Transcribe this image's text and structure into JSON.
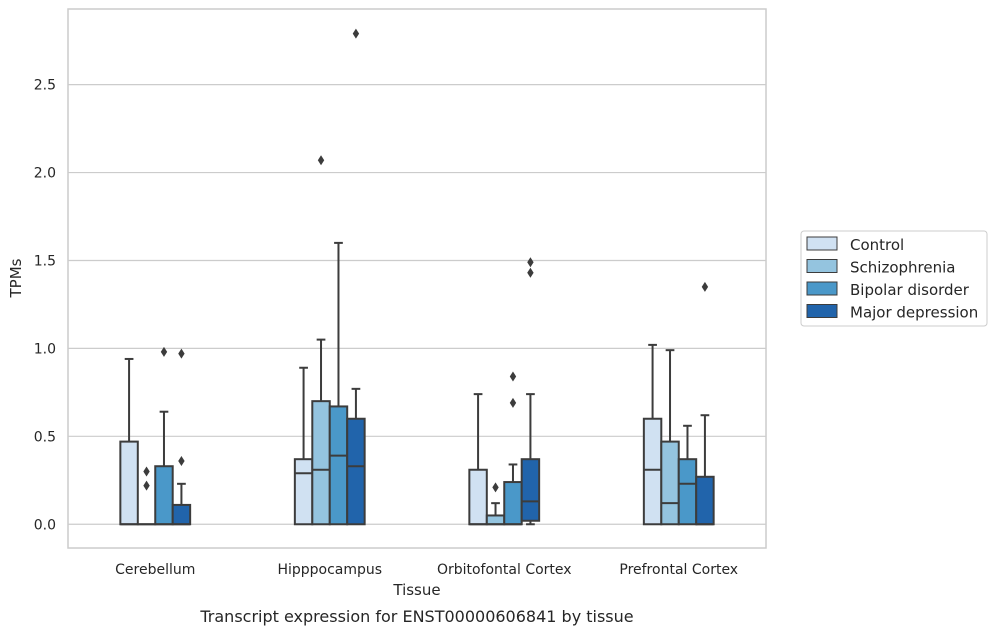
{
  "chart_data": {
    "type": "box",
    "title": "",
    "xlabel": "Tissue",
    "ylabel": "TPMs",
    "caption": "Transcript expression for ENST00000606841 by tissue",
    "ylim": [
      -0.135,
      2.93
    ],
    "yticks": [
      0.0,
      0.5,
      1.0,
      1.5,
      2.0,
      2.5
    ],
    "ytick_labels": [
      "0.0",
      "0.5",
      "1.0",
      "1.5",
      "2.0",
      "2.5"
    ],
    "grid": "horizontal",
    "legend_position": "right",
    "categories": [
      "Cerebellum",
      "Hipppocampus",
      "Orbitofontal Cortex",
      "Prefrontal Cortex"
    ],
    "series": [
      {
        "name": "Control",
        "color": "#d0e1f2",
        "boxes": [
          {
            "q1": 0.0,
            "median": 0.0,
            "q3": 0.47,
            "whislo": 0.0,
            "whishi": 0.94,
            "fliers": []
          },
          {
            "q1": 0.0,
            "median": 0.29,
            "q3": 0.37,
            "whislo": 0.0,
            "whishi": 0.89,
            "fliers": []
          },
          {
            "q1": 0.0,
            "median": 0.0,
            "q3": 0.31,
            "whislo": 0.0,
            "whishi": 0.74,
            "fliers": []
          },
          {
            "q1": 0.0,
            "median": 0.31,
            "q3": 0.6,
            "whislo": 0.0,
            "whishi": 1.02,
            "fliers": []
          }
        ]
      },
      {
        "name": "Schizophrenia",
        "color": "#94c4df",
        "boxes": [
          {
            "q1": 0.0,
            "median": 0.0,
            "q3": 0.0,
            "whislo": 0.0,
            "whishi": 0.0,
            "fliers": [
              0.22,
              0.3
            ]
          },
          {
            "q1": 0.0,
            "median": 0.31,
            "q3": 0.7,
            "whislo": 0.0,
            "whishi": 1.05,
            "fliers": [
              2.07
            ]
          },
          {
            "q1": 0.0,
            "median": 0.0,
            "q3": 0.05,
            "whislo": 0.0,
            "whishi": 0.12,
            "fliers": [
              0.21
            ]
          },
          {
            "q1": 0.0,
            "median": 0.12,
            "q3": 0.47,
            "whislo": 0.0,
            "whishi": 0.99,
            "fliers": []
          }
        ]
      },
      {
        "name": "Bipolar disorder",
        "color": "#4a98c9",
        "boxes": [
          {
            "q1": 0.0,
            "median": 0.0,
            "q3": 0.33,
            "whislo": 0.0,
            "whishi": 0.64,
            "fliers": [
              0.98
            ]
          },
          {
            "q1": 0.0,
            "median": 0.39,
            "q3": 0.67,
            "whislo": 0.0,
            "whishi": 1.6,
            "fliers": []
          },
          {
            "q1": 0.0,
            "median": 0.0,
            "q3": 0.24,
            "whislo": 0.0,
            "whishi": 0.34,
            "fliers": [
              0.69,
              0.84
            ]
          },
          {
            "q1": 0.0,
            "median": 0.23,
            "q3": 0.37,
            "whislo": 0.0,
            "whishi": 0.56,
            "fliers": []
          }
        ]
      },
      {
        "name": "Major depression",
        "color": "#2164ab",
        "boxes": [
          {
            "q1": 0.0,
            "median": 0.0,
            "q3": 0.11,
            "whislo": 0.0,
            "whishi": 0.23,
            "fliers": [
              0.36,
              0.97
            ]
          },
          {
            "q1": 0.0,
            "median": 0.33,
            "q3": 0.6,
            "whislo": 0.0,
            "whishi": 0.77,
            "fliers": [
              2.79
            ]
          },
          {
            "q1": 0.02,
            "median": 0.13,
            "q3": 0.37,
            "whislo": 0.0,
            "whishi": 0.74,
            "fliers": [
              1.43,
              1.49
            ]
          },
          {
            "q1": 0.0,
            "median": 0.0,
            "q3": 0.27,
            "whislo": 0.0,
            "whishi": 0.62,
            "fliers": [
              1.35
            ]
          }
        ]
      }
    ]
  }
}
